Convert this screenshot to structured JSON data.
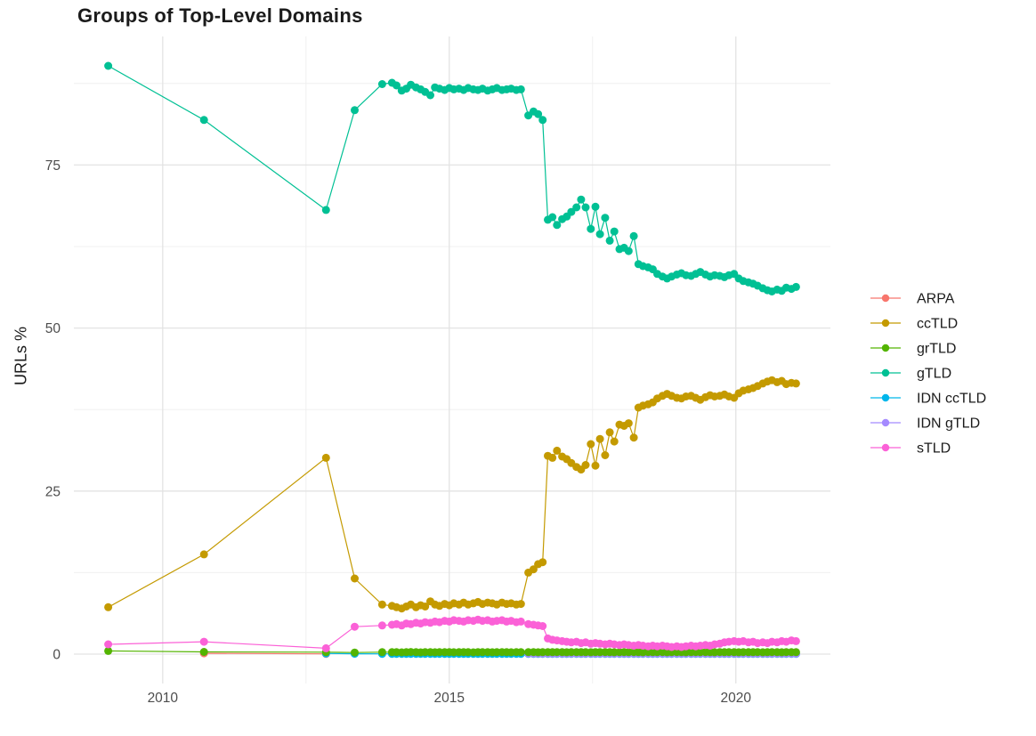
{
  "chart_data": {
    "type": "line",
    "title": "Groups of Top-Level Domains",
    "xlabel": "",
    "ylabel": "URLs %",
    "x_ticks": [
      2010,
      2015,
      2020
    ],
    "x_minor_ticks": [
      2012.5,
      2017.5
    ],
    "y_ticks": [
      0,
      25,
      50,
      75
    ],
    "y_minor_ticks": [
      12.5,
      37.5,
      62.5,
      87.5
    ],
    "x_range": [
      2008.45,
      2021.65
    ],
    "y_range": [
      -4.5,
      94.7
    ],
    "grid": true,
    "legend_position": "right",
    "colors": {
      "grid_major": "#e3e3e3",
      "grid_minor": "#f0f0f0",
      "tick_label": "#4d4d4d",
      "text": "#1b1b1b",
      "background": "#ffffff"
    },
    "x": [
      2009.05,
      2010.72,
      2012.85,
      2013.35,
      2013.83,
      2014.0,
      2014.08,
      2014.17,
      2014.25,
      2014.33,
      2014.42,
      2014.5,
      2014.58,
      2014.67,
      2014.75,
      2014.83,
      2014.92,
      2015.0,
      2015.08,
      2015.17,
      2015.25,
      2015.33,
      2015.42,
      2015.5,
      2015.58,
      2015.67,
      2015.75,
      2015.83,
      2015.92,
      2016.0,
      2016.08,
      2016.17,
      2016.25,
      2016.38,
      2016.47,
      2016.55,
      2016.63,
      2016.72,
      2016.8,
      2016.88,
      2016.97,
      2017.05,
      2017.13,
      2017.22,
      2017.3,
      2017.38,
      2017.47,
      2017.55,
      2017.63,
      2017.72,
      2017.8,
      2017.88,
      2017.97,
      2018.05,
      2018.13,
      2018.22,
      2018.3,
      2018.38,
      2018.47,
      2018.55,
      2018.63,
      2018.72,
      2018.8,
      2018.88,
      2018.97,
      2019.05,
      2019.13,
      2019.22,
      2019.3,
      2019.38,
      2019.47,
      2019.55,
      2019.63,
      2019.72,
      2019.8,
      2019.88,
      2019.97,
      2020.05,
      2020.13,
      2020.22,
      2020.3,
      2020.38,
      2020.47,
      2020.55,
      2020.63,
      2020.72,
      2020.8,
      2020.88,
      2020.97,
      2021.05
    ],
    "series": [
      {
        "name": "ARPA",
        "color": "#F8766D",
        "values": [
          null,
          0.12,
          0.05,
          null,
          null,
          null,
          null,
          null,
          null,
          null,
          null,
          null,
          null,
          null,
          null,
          null,
          null,
          null,
          null,
          null,
          null,
          null,
          null,
          null,
          null,
          null,
          null,
          null,
          null,
          null,
          null,
          null,
          null,
          null,
          null,
          null,
          null,
          null,
          null,
          null,
          null,
          null,
          null,
          null,
          null,
          null,
          null,
          null,
          null,
          null,
          null,
          null,
          null,
          null,
          null,
          null,
          null,
          null,
          null,
          null,
          null,
          null,
          null,
          null,
          null,
          null,
          null,
          null,
          null,
          null,
          null,
          null,
          null,
          null,
          null,
          null,
          null,
          null,
          null,
          null,
          null,
          null,
          null,
          null,
          null,
          null,
          null,
          null,
          null,
          null
        ]
      },
      {
        "name": "ccTLD",
        "color": "#C49A00",
        "values": [
          7.2,
          15.3,
          30.1,
          11.6,
          7.6,
          7.4,
          7.2,
          7.0,
          7.3,
          7.6,
          7.2,
          7.5,
          7.3,
          8.1,
          7.6,
          7.4,
          7.7,
          7.5,
          7.8,
          7.6,
          7.9,
          7.6,
          7.8,
          8.0,
          7.7,
          7.9,
          7.8,
          7.6,
          7.9,
          7.7,
          7.8,
          7.6,
          7.7,
          12.5,
          13.0,
          13.8,
          14.1,
          30.4,
          30.1,
          31.2,
          30.3,
          29.9,
          29.3,
          28.7,
          28.3,
          29.0,
          32.2,
          28.9,
          33.0,
          30.5,
          34.0,
          32.6,
          35.2,
          35.0,
          35.4,
          33.2,
          37.8,
          38.1,
          38.3,
          38.6,
          39.2,
          39.6,
          39.9,
          39.6,
          39.3,
          39.2,
          39.5,
          39.6,
          39.3,
          39.0,
          39.4,
          39.7,
          39.5,
          39.6,
          39.8,
          39.5,
          39.3,
          40.0,
          40.4,
          40.6,
          40.8,
          41.1,
          41.5,
          41.8,
          42.0,
          41.7,
          41.9,
          41.4,
          41.6,
          41.5
        ]
      },
      {
        "name": "grTLD",
        "color": "#53B400",
        "values": [
          0.5,
          0.35,
          0.3,
          0.25,
          0.3,
          0.3,
          0.32,
          0.28,
          0.3,
          0.33,
          0.3,
          0.28,
          0.31,
          0.3,
          0.29,
          0.32,
          0.3,
          0.31,
          0.29,
          0.3,
          0.32,
          0.3,
          0.28,
          0.31,
          0.3,
          0.32,
          0.29,
          0.3,
          0.31,
          0.3,
          0.29,
          0.31,
          0.3,
          0.3,
          0.31,
          0.29,
          0.3,
          0.32,
          0.3,
          0.31,
          0.3,
          0.29,
          0.31,
          0.3,
          0.32,
          0.3,
          0.29,
          0.31,
          0.3,
          0.31,
          0.3,
          0.29,
          0.3,
          0.31,
          0.3,
          0.32,
          0.3,
          0.29,
          0.31,
          0.3,
          0.3,
          0.31,
          0.29,
          0.3,
          0.31,
          0.3,
          0.29,
          0.3,
          0.31,
          0.3,
          0.32,
          0.3,
          0.29,
          0.31,
          0.3,
          0.31,
          0.3,
          0.29,
          0.31,
          0.3,
          0.3,
          0.31,
          0.29,
          0.3,
          0.31,
          0.3,
          0.29,
          0.31,
          0.3,
          0.3
        ]
      },
      {
        "name": "gTLD",
        "color": "#00C094",
        "values": [
          90.2,
          81.9,
          68.1,
          83.4,
          87.4,
          87.6,
          87.2,
          86.4,
          86.7,
          87.3,
          86.9,
          86.6,
          86.2,
          85.7,
          86.9,
          86.7,
          86.5,
          86.8,
          86.6,
          86.7,
          86.5,
          86.8,
          86.6,
          86.5,
          86.7,
          86.4,
          86.6,
          86.8,
          86.5,
          86.6,
          86.7,
          86.5,
          86.6,
          82.6,
          83.2,
          82.8,
          81.9,
          66.6,
          67.0,
          65.8,
          66.7,
          67.1,
          67.8,
          68.5,
          69.7,
          68.5,
          65.2,
          68.6,
          64.4,
          66.9,
          63.4,
          64.8,
          62.1,
          62.3,
          61.8,
          64.1,
          59.8,
          59.5,
          59.3,
          59.0,
          58.3,
          57.9,
          57.6,
          57.9,
          58.2,
          58.4,
          58.1,
          58.0,
          58.3,
          58.6,
          58.2,
          57.9,
          58.1,
          58.0,
          57.8,
          58.1,
          58.3,
          57.6,
          57.2,
          57.0,
          56.8,
          56.5,
          56.1,
          55.8,
          55.6,
          55.9,
          55.7,
          56.2,
          56.0,
          56.3
        ]
      },
      {
        "name": "IDN ccTLD",
        "color": "#00B6EB",
        "values": [
          null,
          null,
          0.1,
          0.06,
          0.05,
          0.05,
          0.05,
          0.05,
          0.05,
          0.05,
          0.05,
          0.05,
          0.05,
          0.05,
          0.05,
          0.05,
          0.05,
          0.05,
          0.05,
          0.05,
          0.05,
          0.05,
          0.05,
          0.05,
          0.05,
          0.05,
          0.05,
          0.05,
          0.05,
          0.05,
          0.05,
          0.05,
          0.05,
          0.05,
          0.05,
          0.05,
          0.05,
          0.05,
          0.05,
          0.05,
          0.05,
          0.05,
          0.05,
          0.05,
          0.05,
          0.05,
          0.05,
          0.05,
          0.05,
          0.05,
          0.05,
          0.05,
          0.05,
          0.05,
          0.05,
          0.05,
          0.05,
          0.05,
          0.05,
          0.05,
          0.05,
          0.05,
          0.05,
          0.05,
          0.05,
          0.05,
          0.05,
          0.05,
          0.05,
          0.05,
          0.05,
          0.05,
          0.05,
          0.05,
          0.05,
          0.05,
          0.05,
          0.05,
          0.05,
          0.05,
          0.05,
          0.05,
          0.05,
          0.05,
          0.05,
          0.05,
          0.05,
          0.05,
          0.05,
          0.05
        ]
      },
      {
        "name": "IDN gTLD",
        "color": "#A58AFF",
        "values": [
          null,
          null,
          null,
          null,
          null,
          null,
          null,
          null,
          null,
          null,
          null,
          null,
          null,
          null,
          null,
          null,
          null,
          null,
          null,
          null,
          null,
          null,
          null,
          null,
          null,
          null,
          null,
          null,
          null,
          null,
          null,
          null,
          null,
          0.08,
          0.08,
          0.08,
          0.08,
          0.08,
          0.08,
          0.08,
          0.08,
          0.08,
          0.08,
          0.08,
          0.08,
          0.08,
          0.08,
          0.08,
          0.08,
          0.08,
          0.08,
          0.08,
          0.08,
          0.08,
          0.08,
          0.08,
          0.08,
          0.08,
          0.08,
          0.08,
          0.08,
          0.08,
          0.08,
          0.08,
          0.08,
          0.08,
          0.08,
          0.08,
          0.08,
          0.08,
          0.08,
          0.08,
          0.08,
          0.08,
          0.08,
          0.08,
          0.08,
          0.08,
          0.08,
          0.08,
          0.08,
          0.08,
          0.08,
          0.08,
          0.08,
          0.08,
          0.08,
          0.08,
          0.08,
          0.08
        ]
      },
      {
        "name": "sTLD",
        "color": "#FB61D7",
        "values": [
          1.5,
          1.9,
          0.9,
          4.2,
          4.4,
          4.5,
          4.6,
          4.4,
          4.7,
          4.6,
          4.8,
          4.7,
          4.9,
          4.8,
          5.0,
          4.9,
          5.1,
          5.0,
          5.2,
          5.1,
          5.0,
          5.2,
          5.1,
          5.3,
          5.1,
          5.2,
          5.0,
          5.1,
          5.2,
          5.0,
          5.1,
          4.9,
          5.0,
          4.6,
          4.5,
          4.4,
          4.3,
          2.4,
          2.2,
          2.1,
          2.0,
          1.9,
          1.8,
          1.9,
          1.7,
          1.8,
          1.6,
          1.7,
          1.6,
          1.5,
          1.6,
          1.5,
          1.4,
          1.5,
          1.4,
          1.3,
          1.4,
          1.3,
          1.2,
          1.3,
          1.2,
          1.3,
          1.2,
          1.1,
          1.2,
          1.1,
          1.2,
          1.3,
          1.2,
          1.3,
          1.4,
          1.3,
          1.5,
          1.6,
          1.8,
          1.9,
          2.0,
          1.9,
          2.0,
          1.8,
          1.9,
          1.7,
          1.8,
          1.7,
          1.9,
          1.8,
          2.0,
          1.9,
          2.1,
          2.0
        ]
      }
    ],
    "draw_order": [
      "ARPA",
      "IDN ccTLD",
      "IDN gTLD",
      "grTLD",
      "ccTLD",
      "gTLD",
      "sTLD"
    ]
  }
}
